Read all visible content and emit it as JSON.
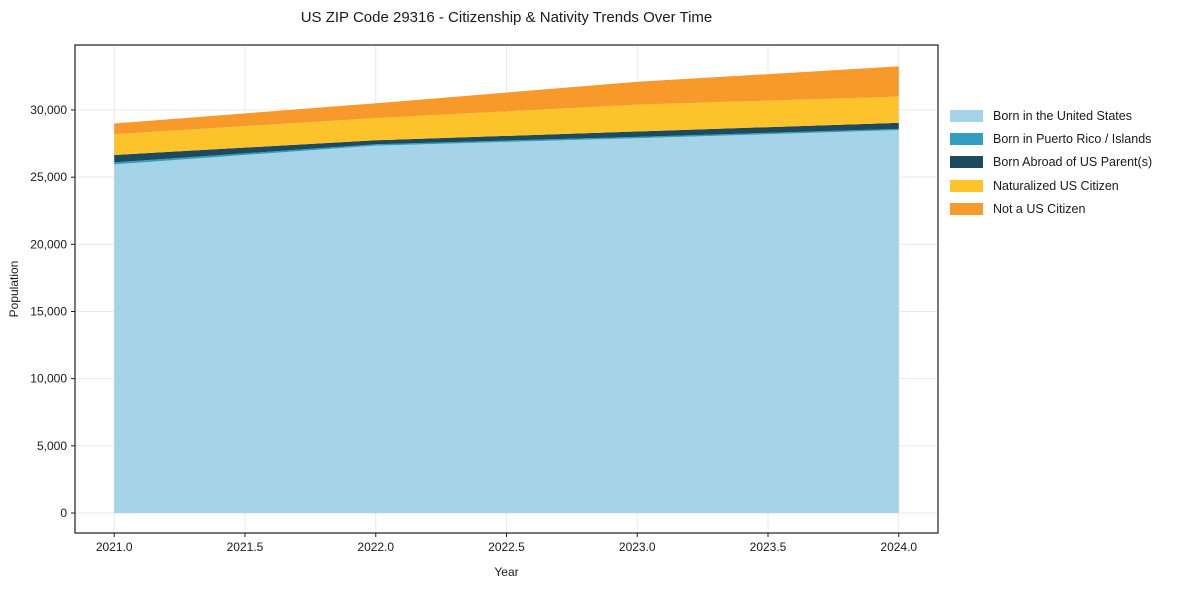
{
  "figure": {
    "title": "US ZIP Code 29316 - Citizenship & Nativity Trends Over Time",
    "xlabel": "Year",
    "ylabel": "Population"
  },
  "chart_data": {
    "type": "area",
    "stacked": true,
    "title": "US ZIP Code 29316 - Citizenship & Nativity Trends Over Time",
    "xlabel": "Year",
    "ylabel": "Population",
    "x": [
      2021,
      2022,
      2023,
      2024
    ],
    "series": [
      {
        "name": "Born in the United States",
        "color": "#A5D3E8",
        "values": [
          25950,
          27350,
          27900,
          28500
        ]
      },
      {
        "name": "Born in Puerto Rico / Islands",
        "color": "#359EC0",
        "values": [
          150,
          100,
          100,
          100
        ]
      },
      {
        "name": "Born Abroad of US Parent(s)",
        "color": "#1D4A5C",
        "values": [
          550,
          300,
          400,
          450
        ]
      },
      {
        "name": "Naturalized US Citizen",
        "color": "#FCC32B",
        "values": [
          1550,
          1650,
          2000,
          1950
        ]
      },
      {
        "name": "Not a US Citizen",
        "color": "#F89A2B",
        "values": [
          800,
          1100,
          1700,
          2250
        ]
      }
    ],
    "xlim": [
      2020.85,
      2024.15
    ],
    "ylim": [
      -1489,
      34840
    ],
    "xticks": {
      "values": [
        2021.0,
        2021.5,
        2022.0,
        2022.5,
        2023.0,
        2023.5,
        2024.0
      ],
      "labels": [
        "2021.0",
        "2021.5",
        "2022.0",
        "2022.5",
        "2023.0",
        "2023.5",
        "2024.0"
      ]
    },
    "yticks": {
      "values": [
        0,
        5000,
        10000,
        15000,
        20000,
        25000,
        30000
      ],
      "labels": [
        "0",
        "5,000",
        "10,000",
        "15,000",
        "20,000",
        "25,000",
        "30,000"
      ]
    },
    "grid": true,
    "legend_position": "right",
    "colors": {
      "grid": "#e9e9e9",
      "spine": "#1f1f1f",
      "tick": "#1f1f1f",
      "background": "#ffffff"
    }
  }
}
